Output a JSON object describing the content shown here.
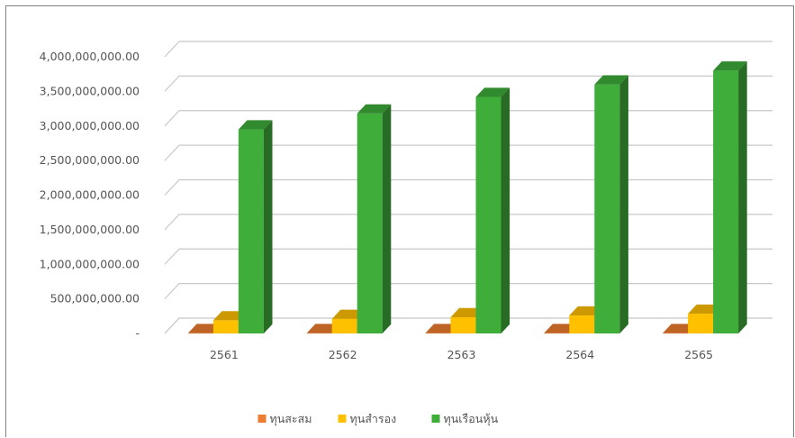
{
  "chart_data": {
    "type": "bar",
    "title": "",
    "xlabel": "",
    "ylabel": "",
    "categories": [
      "2561",
      "2562",
      "2563",
      "2564",
      "2565"
    ],
    "series": [
      {
        "name": "ทุนสะสม",
        "color": "#ED7D31",
        "values": [
          5000000,
          5000000,
          5000000,
          5000000,
          5000000
        ]
      },
      {
        "name": "ทุนสำรอง",
        "color": "#FFC000",
        "values": [
          190000000,
          210000000,
          235000000,
          260000000,
          285000000
        ]
      },
      {
        "name": "ทุนเรือนหุ้น",
        "color": "#3FAD3A",
        "values": [
          2950000000,
          3180000000,
          3420000000,
          3600000000,
          3800000000
        ]
      }
    ],
    "ylim": [
      0,
      4000000000
    ],
    "yticks": [
      "-",
      "500,000,000.00",
      "1,000,000,000.00",
      "1,500,000,000.00",
      "2,000,000,000.00",
      "2,500,000,000.00",
      "3,000,000,000.00",
      "3,500,000,000.00",
      "4,000,000,000.00"
    ],
    "grid": true,
    "legend_position": "bottom",
    "style": "3d-column"
  }
}
